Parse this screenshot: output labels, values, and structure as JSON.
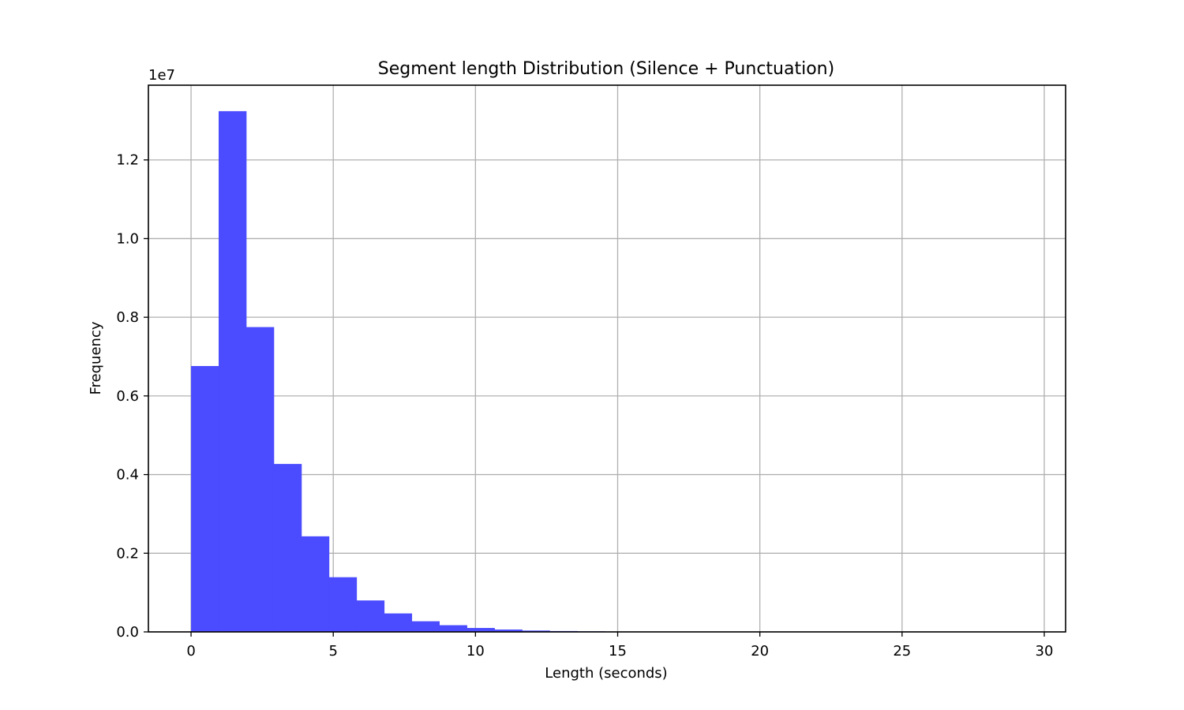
{
  "chart_data": {
    "type": "bar",
    "title": "Segment length Distribution (Silence + Punctuation)",
    "xlabel": "Length (seconds)",
    "ylabel": "Frequency",
    "y_scale_label": "1e7",
    "y_multiplier": 10000000,
    "xlim": [
      -1.5,
      30.75
    ],
    "ylim": [
      0,
      13900000
    ],
    "xticks": [
      0,
      5,
      10,
      15,
      20,
      25,
      30
    ],
    "xtick_labels": [
      "0",
      "5",
      "10",
      "15",
      "20",
      "25",
      "30"
    ],
    "yticks": [
      0,
      2000000,
      4000000,
      6000000,
      8000000,
      10000000,
      12000000
    ],
    "ytick_labels": [
      "0.0",
      "0.2",
      "0.4",
      "0.6",
      "0.8",
      "1.0",
      "1.2"
    ],
    "grid": true,
    "bar_color": "#4b4bff",
    "bin_start": 0,
    "bin_width": 0.97,
    "values": [
      6760000,
      13240000,
      7750000,
      4270000,
      2430000,
      1390000,
      800000,
      470000,
      270000,
      170000,
      100000,
      60000,
      35000,
      22000,
      15000,
      10000,
      7000,
      5000,
      3500,
      2500,
      1800,
      1300,
      900,
      700,
      500,
      400,
      300,
      200,
      150,
      100,
      80
    ]
  }
}
